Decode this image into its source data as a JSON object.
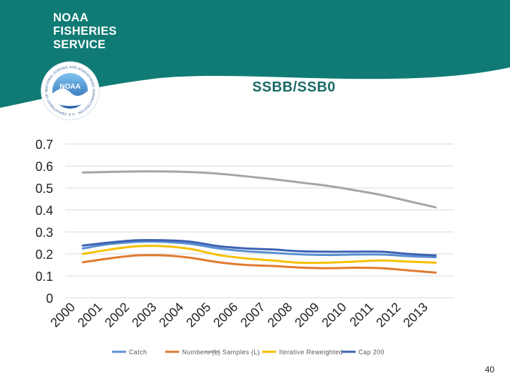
{
  "header": {
    "agency_lines": "NOAA\nFISHERIES\nSERVICE",
    "logo_text": "NOAA",
    "logo_ring_text": "NATIONAL OCEANIC AND ATMOSPHERIC ADMINISTRATION · U.S. DEPARTMENT OF COMMERCE",
    "banner_color": "#0f7b74"
  },
  "chart_data": {
    "type": "line",
    "title": "SSBB/SSB0",
    "xlabel": "",
    "ylabel": "",
    "x": [
      "2000",
      "2001",
      "2002",
      "2003",
      "2004",
      "2005",
      "2006",
      "2007",
      "2008",
      "2009",
      "2010",
      "2011",
      "2012",
      "2013"
    ],
    "ylim": [
      0,
      0.7
    ],
    "yticks": [
      "0.7",
      "0.6",
      "0.5",
      "0.4",
      "0.3",
      "0.2",
      "0.1",
      "0"
    ],
    "grid": true,
    "legend": "bottom",
    "series": [
      {
        "name": "Catch",
        "color": "#5b8fd0",
        "values": [
          0.225,
          0.245,
          0.255,
          0.255,
          0.245,
          0.225,
          0.212,
          0.205,
          0.198,
          0.195,
          0.197,
          0.197,
          0.19,
          0.185
        ]
      },
      {
        "name": "Numbers (L)",
        "color": "#e07a30",
        "values": [
          0.162,
          0.18,
          0.193,
          0.193,
          0.182,
          0.162,
          0.15,
          0.145,
          0.138,
          0.135,
          0.137,
          0.135,
          0.125,
          0.115
        ]
      },
      {
        "name": "Samples (L)",
        "color": "#a5a5a5",
        "values": [
          0.57,
          0.573,
          0.575,
          0.575,
          0.572,
          0.565,
          0.553,
          0.54,
          0.525,
          0.51,
          0.49,
          0.468,
          0.44,
          0.412
        ]
      },
      {
        "name": "Iterative Reweighted",
        "color": "#f5c000",
        "values": [
          0.2,
          0.22,
          0.235,
          0.235,
          0.222,
          0.195,
          0.18,
          0.17,
          0.16,
          0.16,
          0.165,
          0.17,
          0.165,
          0.16
        ]
      },
      {
        "name": "Cap 200",
        "color": "#3d62b4",
        "values": [
          0.238,
          0.252,
          0.262,
          0.262,
          0.255,
          0.235,
          0.225,
          0.22,
          0.212,
          0.21,
          0.21,
          0.21,
          0.2,
          0.193
        ]
      }
    ]
  },
  "footer": {
    "page_number": "40"
  }
}
